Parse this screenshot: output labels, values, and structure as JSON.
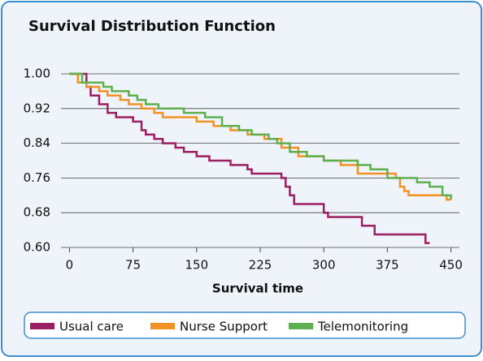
{
  "chart_data": {
    "type": "step",
    "title": "Survival Distribution Function",
    "xlabel": "Survival time",
    "xlim": [
      -10,
      460
    ],
    "xticks": [
      0,
      75,
      150,
      225,
      300,
      375,
      450
    ],
    "ylim": [
      0.6,
      1.0
    ],
    "yticks": [
      {
        "value": 1.0,
        "label": "1.00"
      },
      0.92,
      0.84,
      0.76,
      0.68,
      {
        "value": 0.6,
        "label": "0.60"
      }
    ],
    "grid": true,
    "legend": "bottom",
    "series": [
      {
        "name": "Usual care",
        "color": "#9c1f63",
        "x": [
          0,
          20,
          25,
          35,
          45,
          55,
          75,
          85,
          90,
          100,
          110,
          125,
          135,
          150,
          165,
          190,
          210,
          215,
          250,
          255,
          260,
          265,
          300,
          305,
          345,
          360,
          420,
          425
        ],
        "values": [
          1.0,
          0.97,
          0.95,
          0.93,
          0.91,
          0.9,
          0.89,
          0.87,
          0.86,
          0.85,
          0.84,
          0.83,
          0.82,
          0.81,
          0.8,
          0.79,
          0.78,
          0.77,
          0.76,
          0.74,
          0.72,
          0.7,
          0.68,
          0.67,
          0.65,
          0.63,
          0.61,
          0.61
        ]
      },
      {
        "name": "Nurse Support",
        "color": "#f39123",
        "x": [
          0,
          10,
          20,
          35,
          45,
          60,
          70,
          85,
          100,
          110,
          150,
          170,
          190,
          210,
          230,
          250,
          270,
          300,
          320,
          340,
          385,
          390,
          395,
          400,
          445,
          450
        ],
        "values": [
          1.0,
          0.98,
          0.97,
          0.96,
          0.95,
          0.94,
          0.93,
          0.92,
          0.91,
          0.9,
          0.89,
          0.88,
          0.87,
          0.86,
          0.85,
          0.83,
          0.81,
          0.8,
          0.79,
          0.77,
          0.76,
          0.74,
          0.73,
          0.72,
          0.71,
          0.71
        ]
      },
      {
        "name": "Telemonitoring",
        "color": "#5db04f",
        "x": [
          0,
          15,
          40,
          50,
          70,
          80,
          90,
          105,
          135,
          160,
          180,
          200,
          215,
          235,
          245,
          260,
          280,
          300,
          340,
          355,
          375,
          410,
          425,
          440,
          450
        ],
        "values": [
          1.0,
          0.98,
          0.97,
          0.96,
          0.95,
          0.94,
          0.93,
          0.92,
          0.91,
          0.9,
          0.88,
          0.87,
          0.86,
          0.85,
          0.84,
          0.82,
          0.81,
          0.8,
          0.79,
          0.78,
          0.76,
          0.75,
          0.74,
          0.72,
          0.71
        ]
      }
    ]
  }
}
